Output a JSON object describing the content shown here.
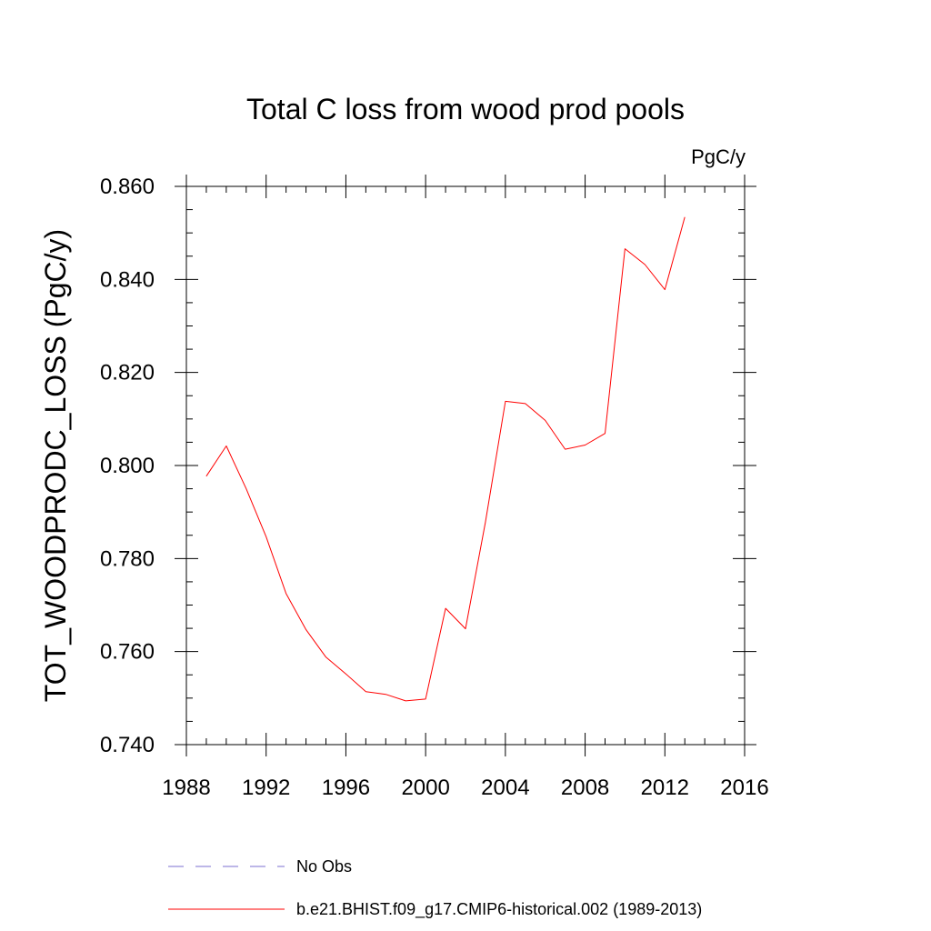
{
  "chart_data": {
    "type": "line",
    "title": "Total C loss from wood prod pools",
    "units_label": "PgC/y",
    "ylabel": "TOT_WOODPRODC_LOSS  (PgC/y)",
    "xlabel": "",
    "xlim": [
      1988,
      2016
    ],
    "ylim": [
      0.74,
      0.86
    ],
    "x_major_ticks": [
      1988,
      1992,
      1996,
      2000,
      2004,
      2008,
      2012,
      2016
    ],
    "x_tick_labels": [
      "1988",
      "1992",
      "1996",
      "2000",
      "2004",
      "2008",
      "2012",
      "2016"
    ],
    "y_major_ticks": [
      0.74,
      0.76,
      0.78,
      0.8,
      0.82,
      0.84,
      0.86
    ],
    "y_tick_labels": [
      "0.740",
      "0.760",
      "0.780",
      "0.800",
      "0.820",
      "0.840",
      "0.860"
    ],
    "grid": false,
    "series": [
      {
        "name": "b.e21.BHIST.f09_g17.CMIP6-historical.002 (1989-2013)",
        "color": "#ff0000",
        "style": "solid",
        "x": [
          1989,
          1990,
          1991,
          1992,
          1993,
          1994,
          1995,
          1996,
          1997,
          1998,
          1999,
          2000,
          2001,
          2002,
          2003,
          2004,
          2005,
          2006,
          2007,
          2008,
          2009,
          2010,
          2011,
          2012,
          2013
        ],
        "y": [
          0.7977,
          0.8042,
          0.795,
          0.7847,
          0.7725,
          0.7647,
          0.7588,
          0.7552,
          0.7514,
          0.7508,
          0.7494,
          0.7498,
          0.7693,
          0.7649,
          0.7878,
          0.8138,
          0.8133,
          0.8097,
          0.8035,
          0.8044,
          0.8069,
          0.8466,
          0.8432,
          0.8378,
          0.8534
        ]
      }
    ],
    "legend": {
      "placement": "bottom",
      "entries": [
        {
          "label": "No Obs",
          "color": "#7b6fd0",
          "style": "dashed"
        },
        {
          "label": "b.e21.BHIST.f09_g17.CMIP6-historical.002 (1989-2013)",
          "color": "#ff0000",
          "style": "solid"
        }
      ]
    }
  }
}
